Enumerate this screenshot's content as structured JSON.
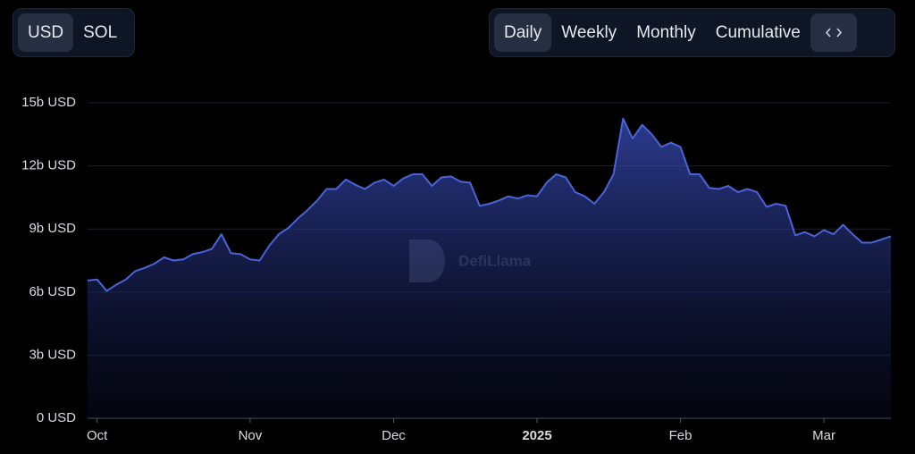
{
  "controls": {
    "currency": [
      "USD",
      "SOL"
    ],
    "period": [
      "Daily",
      "Weekly",
      "Monthly",
      "Cumulative"
    ]
  },
  "watermark": "DefiLlama",
  "chart_data": {
    "type": "area",
    "categories": [
      null,
      "Oct",
      null,
      null,
      null,
      null,
      null,
      null,
      null,
      null,
      null,
      null,
      null,
      null,
      null,
      null,
      null,
      "Nov",
      null,
      null,
      null,
      null,
      null,
      null,
      null,
      null,
      null,
      null,
      null,
      null,
      null,
      null,
      "Dec",
      null,
      null,
      null,
      null,
      null,
      null,
      null,
      null,
      null,
      null,
      null,
      null,
      null,
      null,
      "2025",
      null,
      null,
      null,
      null,
      null,
      null,
      null,
      null,
      null,
      null,
      null,
      null,
      null,
      null,
      "Feb",
      null,
      null,
      null,
      null,
      null,
      null,
      null,
      null,
      null,
      null,
      null,
      null,
      null,
      null,
      "Mar",
      null,
      null,
      null,
      null,
      null,
      null,
      null
    ],
    "values": [
      6.55,
      6.6,
      6.05,
      6.35,
      6.6,
      7.0,
      7.15,
      7.35,
      7.65,
      7.5,
      7.55,
      7.8,
      7.9,
      8.05,
      8.75,
      7.85,
      7.8,
      7.55,
      7.5,
      8.2,
      8.75,
      9.05,
      9.5,
      9.9,
      10.35,
      10.9,
      10.9,
      11.35,
      11.1,
      10.9,
      11.2,
      11.35,
      11.05,
      11.4,
      11.6,
      11.6,
      11.05,
      11.45,
      11.5,
      11.25,
      11.2,
      10.1,
      10.2,
      10.35,
      10.55,
      10.45,
      10.6,
      10.55,
      11.2,
      11.6,
      11.45,
      10.75,
      10.55,
      10.2,
      10.75,
      11.6,
      14.25,
      13.3,
      13.95,
      13.5,
      12.9,
      13.1,
      12.9,
      11.6,
      11.6,
      10.95,
      10.9,
      11.05,
      10.75,
      10.9,
      10.75,
      10.05,
      10.2,
      10.1,
      8.7,
      8.85,
      8.65,
      8.95,
      8.75,
      9.2,
      8.75,
      8.35,
      8.35,
      8.5,
      8.65
    ],
    "color": "#4a63d8",
    "ylim": [
      0,
      15
    ],
    "yticks": [
      {
        "value": 0,
        "label": "0 USD"
      },
      {
        "value": 3,
        "label": "3b USD"
      },
      {
        "value": 6,
        "label": "6b USD"
      },
      {
        "value": 9,
        "label": "9b USD"
      },
      {
        "value": 12,
        "label": "12b USD"
      },
      {
        "value": 15,
        "label": "15b USD"
      }
    ],
    "grid": true
  }
}
